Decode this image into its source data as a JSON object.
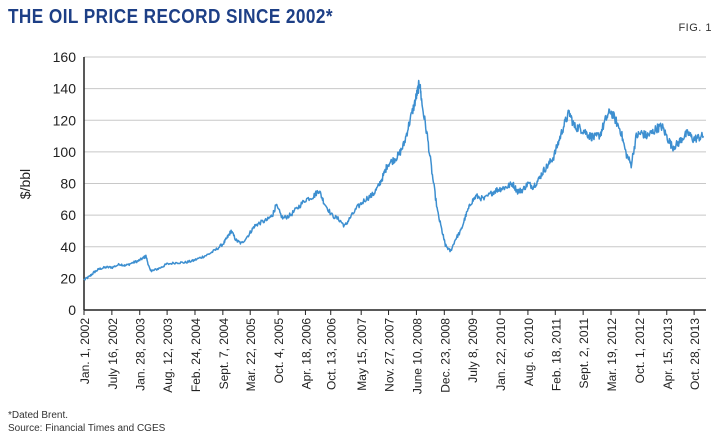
{
  "title": "THE OIL PRICE RECORD SINCE 2002*",
  "figure_label": "FIG. 1",
  "footnote": "*Dated Brent.",
  "source": "Source: Financial Times and CGES",
  "colors": {
    "title": "#1d3f86",
    "line": "#3d8fd0",
    "axis": "#222222",
    "grid": "#c8c8c8"
  },
  "chart_data": {
    "type": "line",
    "title": "THE OIL PRICE RECORD SINCE 2002*",
    "xlabel": "",
    "ylabel": "$/bbl",
    "ylim": [
      0,
      160
    ],
    "yticks": [
      0,
      20,
      40,
      60,
      80,
      100,
      120,
      140,
      160
    ],
    "grid": "horizontal",
    "xlim": [
      2002.0,
      2014.05
    ],
    "x_tick_labels": [
      {
        "label": "Jan. 1, 2002",
        "t": 2002.0
      },
      {
        "label": "July 16, 2002",
        "t": 2002.54
      },
      {
        "label": "Jan. 28, 2003",
        "t": 2003.08
      },
      {
        "label": "Aug. 12, 2003",
        "t": 2003.61
      },
      {
        "label": "Feb. 24, 2004",
        "t": 2004.15
      },
      {
        "label": "Sept. 7, 2004",
        "t": 2004.69
      },
      {
        "label": "Mar. 22, 2005",
        "t": 2005.22
      },
      {
        "label": "Oct. 4, 2005",
        "t": 2005.76
      },
      {
        "label": "Apr. 18, 2006",
        "t": 2006.29
      },
      {
        "label": "Oct. 13, 2006",
        "t": 2006.78
      },
      {
        "label": "May 15, 2007",
        "t": 2007.37
      },
      {
        "label": "Nov. 27, 2007",
        "t": 2007.9
      },
      {
        "label": "June 10, 2008",
        "t": 2008.44
      },
      {
        "label": "Dec. 23, 2008",
        "t": 2008.98
      },
      {
        "label": "July 8, 2009",
        "t": 2009.52
      },
      {
        "label": "Jan. 22, 2010",
        "t": 2010.06
      },
      {
        "label": "Aug. 6, 2010",
        "t": 2010.6
      },
      {
        "label": "Feb. 18, 2011",
        "t": 2011.13
      },
      {
        "label": "Sept. 2, 2011",
        "t": 2011.67
      },
      {
        "label": "Mar. 19, 2012",
        "t": 2012.21
      },
      {
        "label": "Oct. 1, 2012",
        "t": 2012.75
      },
      {
        "label": "Apr. 15, 2013",
        "t": 2013.29
      },
      {
        "label": "Oct. 28, 2013",
        "t": 2013.82
      }
    ],
    "series": [
      {
        "name": "Dated Brent",
        "x": [
          2002.0,
          2002.1,
          2002.2,
          2002.3,
          2002.42,
          2002.55,
          2002.7,
          2002.8,
          2002.95,
          2003.05,
          2003.15,
          2003.2,
          2003.28,
          2003.35,
          2003.5,
          2003.6,
          2003.8,
          2003.95,
          2004.1,
          2004.25,
          2004.4,
          2004.55,
          2004.7,
          2004.78,
          2004.85,
          2004.95,
          2005.05,
          2005.2,
          2005.3,
          2005.4,
          2005.55,
          2005.65,
          2005.72,
          2005.85,
          2006.0,
          2006.15,
          2006.3,
          2006.45,
          2006.55,
          2006.65,
          2006.8,
          2006.95,
          2007.05,
          2007.15,
          2007.3,
          2007.45,
          2007.6,
          2007.7,
          2007.8,
          2007.88,
          2008.0,
          2008.1,
          2008.2,
          2008.3,
          2008.4,
          2008.46,
          2008.5,
          2008.55,
          2008.65,
          2008.75,
          2008.85,
          2008.95,
          2009.0,
          2009.1,
          2009.2,
          2009.3,
          2009.4,
          2009.5,
          2009.6,
          2009.75,
          2009.9,
          2010.0,
          2010.1,
          2010.2,
          2010.3,
          2010.4,
          2010.5,
          2010.6,
          2010.7,
          2010.8,
          2010.9,
          2011.0,
          2011.1,
          2011.2,
          2011.3,
          2011.4,
          2011.5,
          2011.6,
          2011.7,
          2011.8,
          2011.9,
          2012.0,
          2012.1,
          2012.2,
          2012.3,
          2012.4,
          2012.5,
          2012.6,
          2012.7,
          2012.8,
          2012.9,
          2013.0,
          2013.1,
          2013.2,
          2013.3,
          2013.4,
          2013.5,
          2013.6,
          2013.7,
          2013.8,
          2013.9,
          2014.0
        ],
        "y": [
          19,
          21,
          24,
          26,
          27,
          27,
          29,
          28,
          30,
          31,
          33,
          34,
          25,
          25,
          27,
          29,
          30,
          30,
          31,
          33,
          35,
          38,
          42,
          46,
          50,
          44,
          42,
          48,
          53,
          55,
          57,
          60,
          66,
          58,
          60,
          65,
          70,
          72,
          76,
          68,
          60,
          57,
          53,
          58,
          65,
          70,
          73,
          78,
          85,
          92,
          95,
          98,
          105,
          118,
          130,
          138,
          144,
          130,
          110,
          85,
          62,
          48,
          41,
          37,
          45,
          50,
          60,
          68,
          72,
          70,
          74,
          76,
          77,
          78,
          80,
          75,
          76,
          80,
          78,
          82,
          88,
          92,
          97,
          107,
          117,
          125,
          116,
          115,
          113,
          110,
          109,
          111,
          120,
          126,
          120,
          113,
          99,
          92,
          110,
          112,
          110,
          112,
          115,
          116,
          109,
          103,
          105,
          109,
          112,
          108,
          109,
          110
        ]
      }
    ]
  }
}
